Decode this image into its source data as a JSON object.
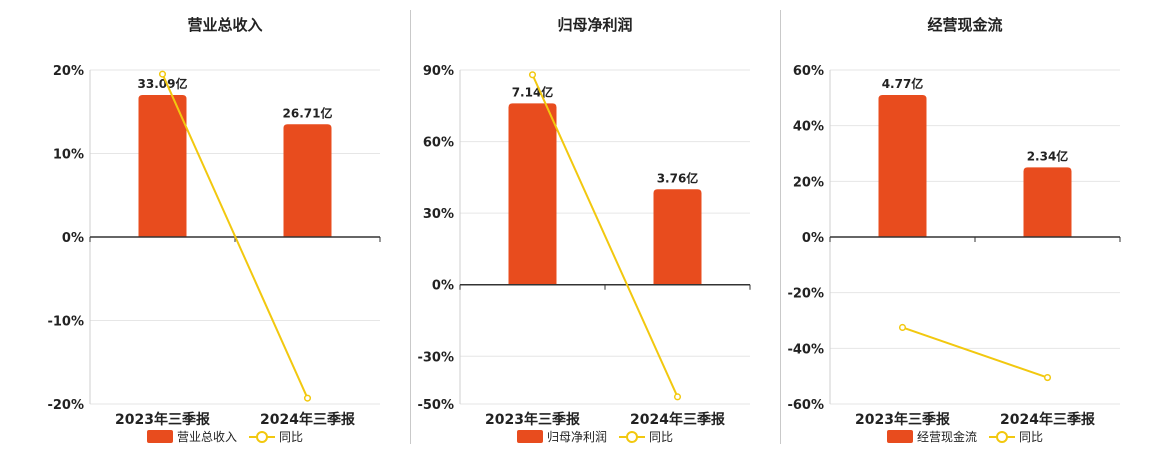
{
  "colors": {
    "bar": "#e84c1e",
    "line": "#f2c80f",
    "grid": "#e6e6e6",
    "axis": "#333333"
  },
  "chart_data": [
    {
      "type": "bar",
      "title": "营业总收入",
      "categories": [
        "2023年三季报",
        "2024年三季报"
      ],
      "bar_series": {
        "name": "营业总收入",
        "values": [
          17,
          13.5
        ],
        "labels": [
          "33.09亿",
          "26.71亿"
        ]
      },
      "line_series": {
        "name": "同比",
        "values": [
          19.5,
          -19.3
        ]
      },
      "y_ticks": [
        20,
        10,
        0,
        -10,
        -20
      ],
      "tick_labels": [
        "20%",
        "10%",
        "0%",
        "-10%",
        "-20%"
      ],
      "ylim": [
        -20,
        20
      ],
      "grid": true,
      "legend": "bottom"
    },
    {
      "type": "bar",
      "title": "归母净利润",
      "categories": [
        "2023年三季报",
        "2024年三季报"
      ],
      "bar_series": {
        "name": "归母净利润",
        "values": [
          76,
          40
        ],
        "labels": [
          "7.14亿",
          "3.76亿"
        ]
      },
      "line_series": {
        "name": "同比",
        "values": [
          88,
          -47
        ]
      },
      "y_ticks": [
        90,
        60,
        30,
        0,
        -30,
        -50
      ],
      "tick_labels": [
        "90%",
        "60%",
        "30%",
        "0%",
        "-30%",
        "-50%"
      ],
      "ylim": [
        -50,
        90
      ],
      "grid": true,
      "legend": "bottom"
    },
    {
      "type": "bar",
      "title": "经营现金流",
      "categories": [
        "2023年三季报",
        "2024年三季报"
      ],
      "bar_series": {
        "name": "经营现金流",
        "values": [
          51,
          25
        ],
        "labels": [
          "4.77亿",
          "2.34亿"
        ]
      },
      "line_series": {
        "name": "同比",
        "values": [
          -32.5,
          -50.5
        ]
      },
      "y_ticks": [
        60,
        40,
        20,
        0,
        -20,
        -40,
        -60
      ],
      "tick_labels": [
        "60%",
        "40%",
        "20%",
        "0%",
        "-20%",
        "-40%",
        "-60%"
      ],
      "ylim": [
        -60,
        60
      ],
      "grid": true,
      "legend": "bottom"
    }
  ]
}
